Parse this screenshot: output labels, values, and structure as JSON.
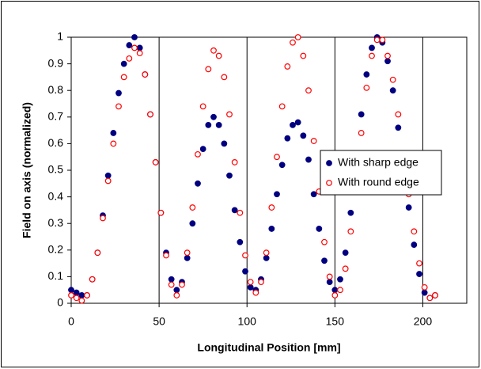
{
  "chart_data": {
    "type": "scatter",
    "x_label": "Longitudinal Position [mm]",
    "y_label": "Field on axis (normalized)",
    "xlim": [
      0,
      225
    ],
    "ylim": [
      0,
      1
    ],
    "xticks": [
      0,
      50,
      100,
      150,
      200
    ],
    "yticks": [
      0,
      0.1,
      0.2,
      0.3,
      0.4,
      0.5,
      0.6,
      0.7,
      0.8,
      0.9,
      1
    ],
    "grid": true,
    "legend": "right",
    "x": [
      0,
      3,
      6,
      9,
      12,
      15,
      18,
      21,
      24,
      27,
      30,
      33,
      36,
      39,
      42,
      45,
      48,
      51,
      54,
      57,
      60,
      63,
      66,
      69,
      72,
      75,
      78,
      81,
      84,
      87,
      90,
      93,
      96,
      99,
      102,
      105,
      108,
      111,
      114,
      117,
      120,
      123,
      126,
      129,
      132,
      135,
      138,
      141,
      144,
      147,
      150,
      153,
      156,
      159,
      162,
      165,
      168,
      171,
      174,
      177,
      180,
      183,
      186,
      189,
      192,
      195,
      198,
      201,
      204,
      207
    ],
    "series": [
      {
        "name": "With sharp edge",
        "color": "#000080",
        "filled": true,
        "values": [
          0.05,
          0.04,
          0.03,
          0.03,
          0.09,
          0.19,
          0.33,
          0.48,
          0.64,
          0.79,
          0.9,
          0.97,
          1.0,
          0.96,
          0.86,
          0.71,
          0.53,
          0.34,
          0.19,
          0.09,
          0.05,
          0.08,
          0.17,
          0.3,
          0.45,
          0.58,
          0.67,
          0.7,
          0.67,
          0.6,
          0.48,
          0.35,
          0.23,
          0.12,
          0.06,
          0.05,
          0.09,
          0.17,
          0.28,
          0.41,
          0.52,
          0.62,
          0.67,
          0.68,
          0.63,
          0.54,
          0.41,
          0.28,
          0.16,
          0.08,
          0.05,
          0.09,
          0.19,
          0.34,
          0.53,
          0.71,
          0.86,
          0.96,
          1.0,
          0.98,
          0.91,
          0.8,
          0.66,
          0.51,
          0.36,
          0.22,
          0.11,
          0.04,
          0.02,
          0.03
        ]
      },
      {
        "name": "With round edge",
        "color": "#ff0000",
        "filled": false,
        "values": [
          0.03,
          0.02,
          0.01,
          0.03,
          0.09,
          0.19,
          0.32,
          0.46,
          0.6,
          0.74,
          0.85,
          0.92,
          0.96,
          0.94,
          0.86,
          0.71,
          0.53,
          0.34,
          0.18,
          0.07,
          0.03,
          0.07,
          0.19,
          0.36,
          0.56,
          0.74,
          0.88,
          0.95,
          0.93,
          0.85,
          0.71,
          0.53,
          0.34,
          0.18,
          0.08,
          0.04,
          0.08,
          0.19,
          0.36,
          0.55,
          0.74,
          0.89,
          0.98,
          1.0,
          0.93,
          0.8,
          0.61,
          0.42,
          0.23,
          0.1,
          0.03,
          0.05,
          0.13,
          0.27,
          0.45,
          0.64,
          0.81,
          0.93,
          0.99,
          0.99,
          0.93,
          0.84,
          0.71,
          0.56,
          0.41,
          0.27,
          0.15,
          0.06,
          0.02,
          0.03
        ]
      }
    ]
  }
}
